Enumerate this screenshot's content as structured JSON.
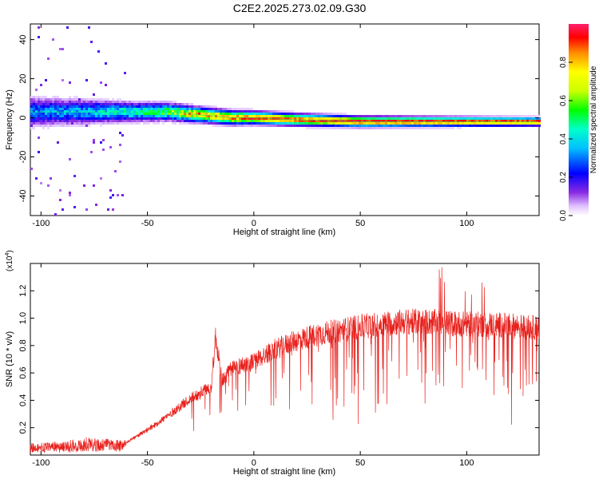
{
  "title": "C2E2.2025.273.02.09.G30",
  "colors": {
    "snr_line": "#e8201c",
    "axis": "#000000"
  },
  "chart_data": [
    {
      "type": "heatmap",
      "xlabel": "Height of straight line (km)",
      "ylabel": "Frequency (Hz)",
      "xlim": [
        -105,
        134
      ],
      "ylim": [
        -50,
        48
      ],
      "xticks": [
        -100,
        -50,
        0,
        50,
        100
      ],
      "yticks": [
        -40,
        -20,
        0,
        20,
        40
      ],
      "colorbar": {
        "label": "Normalized spectral amplitude",
        "range": [
          0.0,
          1.0
        ],
        "ticks": [
          0.0,
          0.2,
          0.4,
          0.6,
          0.8
        ],
        "colormap": "rainbow"
      },
      "ridge": {
        "description_points": [
          [
            -105,
            3
          ],
          [
            -80,
            3
          ],
          [
            -60,
            3
          ],
          [
            -50,
            3
          ],
          [
            -40,
            3
          ],
          [
            -30,
            2
          ],
          [
            -20,
            1
          ],
          [
            -10,
            0
          ],
          [
            0,
            0
          ],
          [
            20,
            -1
          ],
          [
            50,
            -2
          ],
          [
            80,
            -2
          ],
          [
            100,
            -2
          ],
          [
            134,
            -2
          ]
        ],
        "amplitude_points": [
          [
            -105,
            0.3
          ],
          [
            -80,
            0.35
          ],
          [
            -60,
            0.45
          ],
          [
            -50,
            0.5
          ],
          [
            -40,
            0.55
          ],
          [
            -30,
            0.75
          ],
          [
            -20,
            0.8
          ],
          [
            -10,
            0.85
          ],
          [
            0,
            0.9
          ],
          [
            20,
            0.9
          ],
          [
            50,
            0.95
          ],
          [
            80,
            0.95
          ],
          [
            100,
            0.95
          ],
          [
            134,
            0.95
          ]
        ],
        "bandwidth_hz_points": [
          [
            -105,
            12
          ],
          [
            -80,
            10
          ],
          [
            -60,
            8
          ],
          [
            -40,
            7
          ],
          [
            -25,
            6
          ],
          [
            0,
            5
          ],
          [
            50,
            4
          ],
          [
            134,
            3
          ]
        ]
      }
    },
    {
      "type": "line",
      "series": [
        {
          "name": "",
          "envelope": [
            [
              -105,
              0.08
            ],
            [
              -90,
              0.09
            ],
            [
              -80,
              0.12
            ],
            [
              -70,
              0.11
            ],
            [
              -60,
              0.1
            ],
            [
              -50,
              0.2
            ],
            [
              -40,
              0.32
            ],
            [
              -30,
              0.45
            ],
            [
              -20,
              0.55
            ],
            [
              -18,
              0.95
            ],
            [
              -15,
              0.6
            ],
            [
              -10,
              0.7
            ],
            [
              0,
              0.75
            ],
            [
              10,
              0.85
            ],
            [
              20,
              0.92
            ],
            [
              30,
              0.97
            ],
            [
              40,
              1.0
            ],
            [
              50,
              1.03
            ],
            [
              60,
              1.05
            ],
            [
              70,
              1.07
            ],
            [
              80,
              1.07
            ],
            [
              90,
              1.06
            ],
            [
              100,
              1.05
            ],
            [
              110,
              1.05
            ],
            [
              120,
              1.04
            ],
            [
              134,
              1.02
            ]
          ]
        }
      ],
      "xlabel": "Height of straight line (km)",
      "ylabel": "SNR (10 * v/v)",
      "y_multiplier_label": "(x10",
      "y_multiplier_exp": "4",
      "y_multiplier_close": ")",
      "xlim": [
        -105,
        134
      ],
      "ylim": [
        0.0,
        1.4
      ],
      "xticks": [
        -100,
        -50,
        0,
        50,
        100
      ],
      "yticks": [
        0.2,
        0.4,
        0.6,
        0.8,
        1.0,
        1.2
      ]
    }
  ]
}
